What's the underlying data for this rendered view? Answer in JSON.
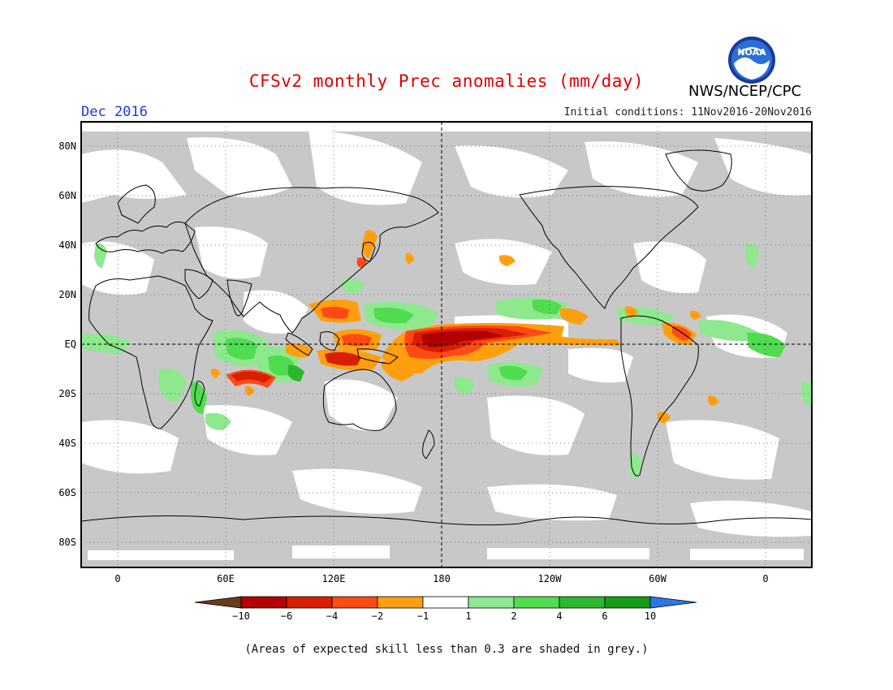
{
  "header": {
    "title": "CFSv2 monthly Prec anomalies (mm/day)",
    "agency": "NWS/NCEP/CPC",
    "logo_text": "NOAA",
    "month": "Dec 2016",
    "initial_conditions": "Initial conditions: 11Nov2016-20Nov2016"
  },
  "map": {
    "lat_labels": [
      "80N",
      "60N",
      "40N",
      "20N",
      "EQ",
      "20S",
      "40S",
      "60S",
      "80S"
    ],
    "lon_labels": [
      "0",
      "60E",
      "120E",
      "180",
      "120W",
      "60W",
      "0"
    ],
    "colors": {
      "grey_low_skill": "#c8c8c8",
      "brown": "#6b3a1e",
      "dark_red": "#b30000",
      "red": "#d81e05",
      "red_orange": "#ff4a14",
      "orange": "#ff9f0f",
      "white": "#ffffff",
      "light_green": "#8ee88e",
      "green": "#4fdc4f",
      "mid_green": "#2cb82c",
      "dark_green": "#169c16",
      "blue": "#2a78e8"
    }
  },
  "colorbar": {
    "labels": [
      "-10",
      "-6",
      "-4",
      "-2",
      "-1",
      "1",
      "2",
      "4",
      "6",
      "10"
    ],
    "colors": [
      "#b30000",
      "#d81e05",
      "#ff4a14",
      "#ff9f0f",
      "#ffffff",
      "#8ee88e",
      "#4fdc4f",
      "#2cb82c",
      "#169c16"
    ],
    "low_arrow_color": "#6b3a1e",
    "high_arrow_color": "#2a78e8"
  },
  "footer": {
    "note": "(Areas of expected skill less than 0.3 are shaded in grey.)"
  }
}
